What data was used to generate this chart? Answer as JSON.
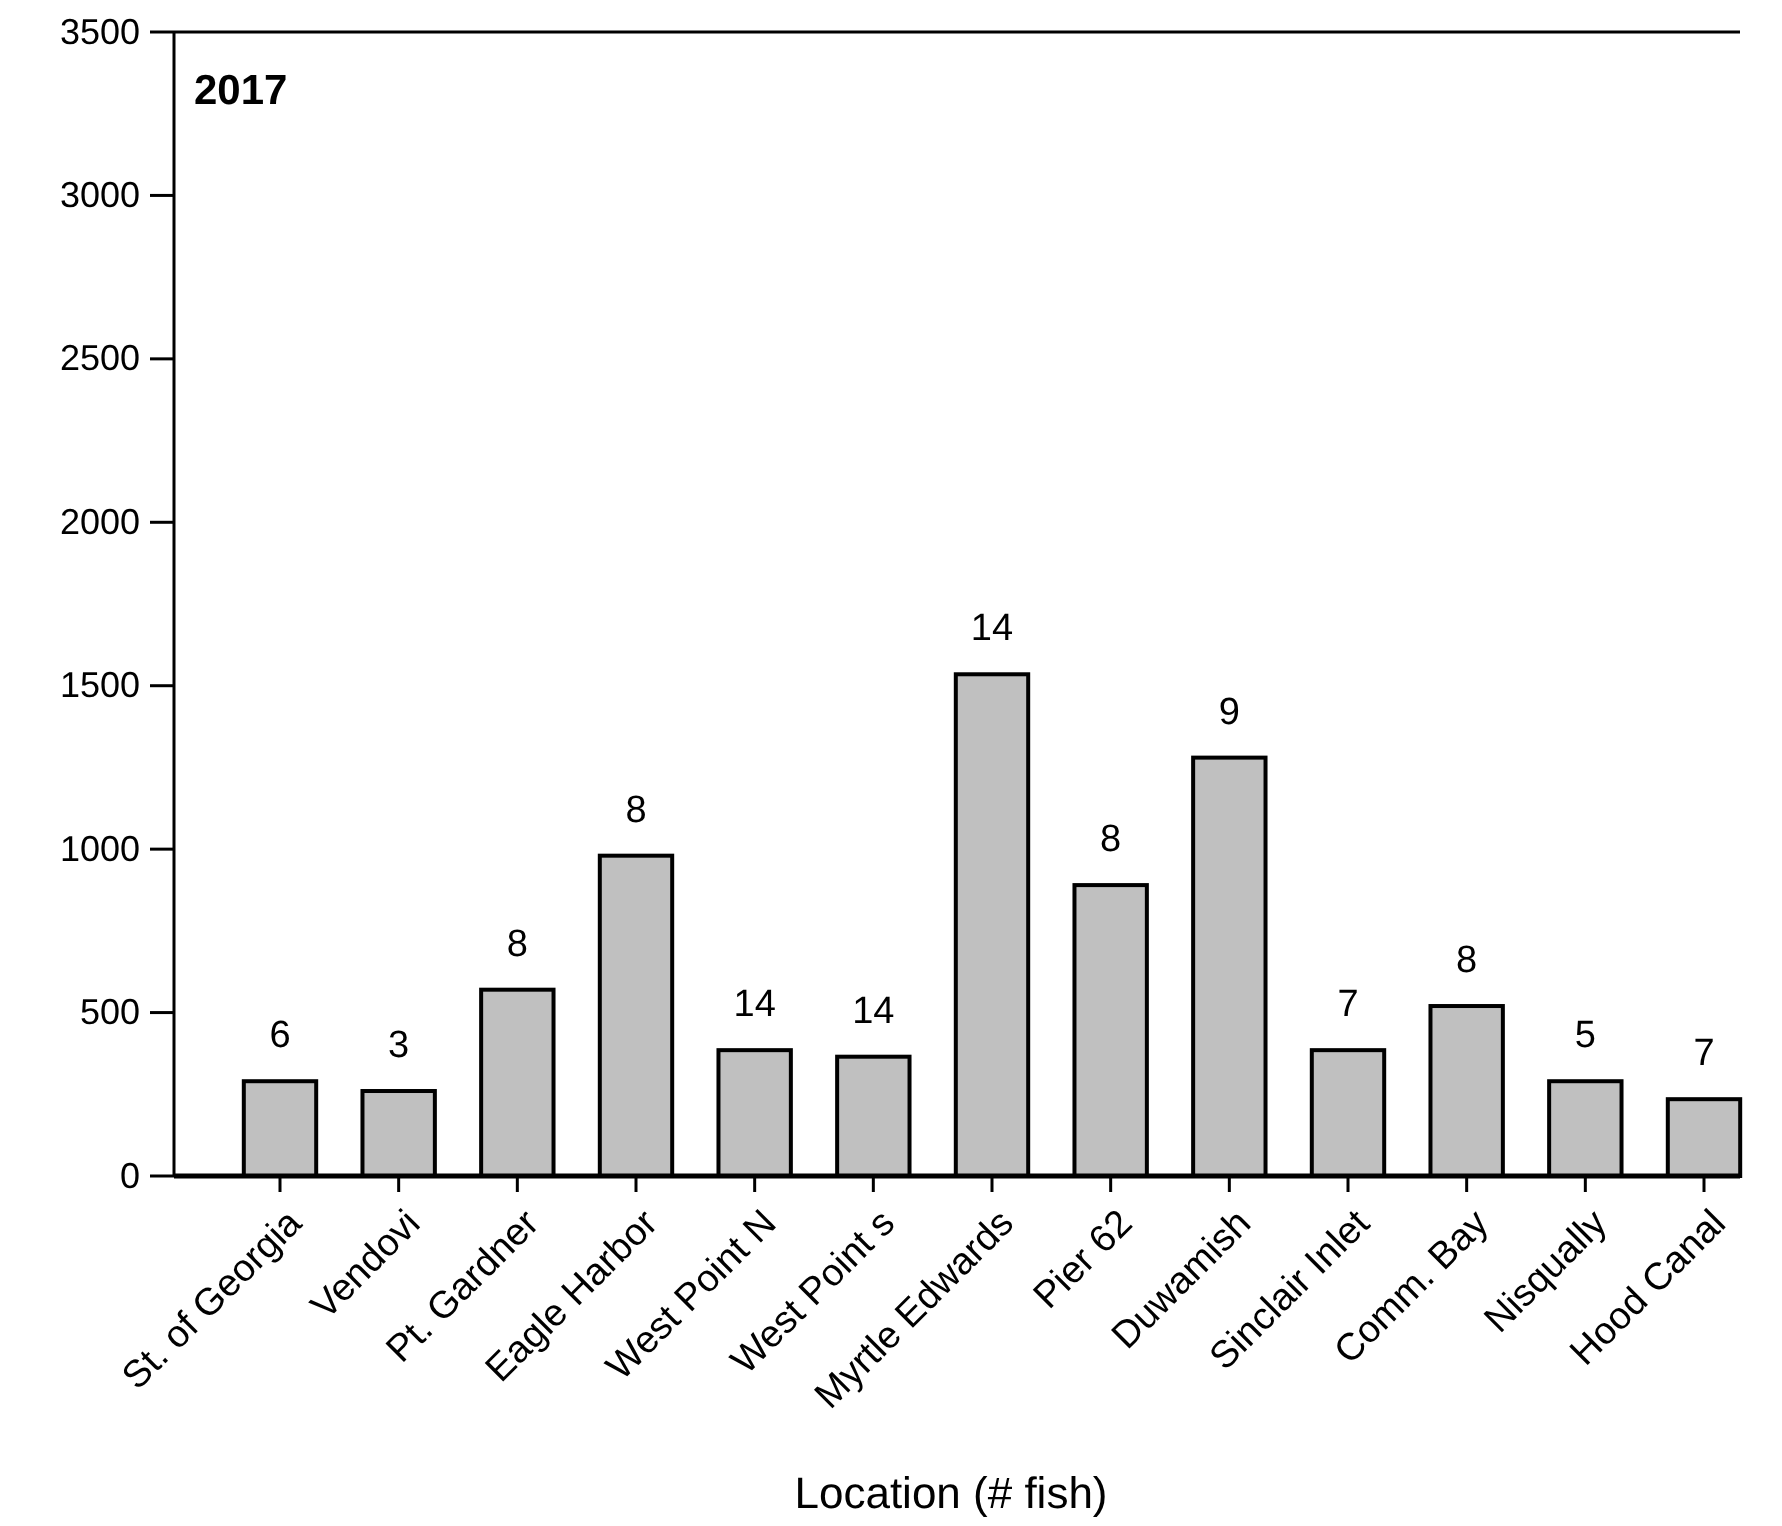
{
  "chart_data": {
    "type": "bar",
    "title": "2017",
    "xlabel": "Location (# fish)",
    "categories": [
      "St. of Georgia",
      "Vendovi",
      "Pt. Gardner",
      "Eagle Harbor",
      "West Point N",
      "West Point s",
      "Myrtle Edwards",
      "Pier 62",
      "Duwamish",
      "Sinclair Inlet",
      "Comm. Bay",
      "Nisqually",
      "Hood Canal"
    ],
    "values": [
      290,
      260,
      570,
      980,
      385,
      365,
      1535,
      890,
      1280,
      385,
      520,
      290,
      235
    ],
    "annotations": [
      {
        "text": "6",
        "x": "St. of Georgia",
        "y": 290
      },
      {
        "text": "3",
        "x": "Vendovi",
        "y": 260
      },
      {
        "text": "8",
        "x": "Pt. Gardner",
        "y": 570
      },
      {
        "text": "8",
        "x": "Eagle Harbor",
        "y": 980
      },
      {
        "text": "14",
        "x": "West Point N",
        "y": 385
      },
      {
        "text": "14",
        "x": "West Point s",
        "y": 365
      },
      {
        "text": "14",
        "x": "Myrtle Edwards",
        "y": 1535
      },
      {
        "text": "8",
        "x": "Pier 62",
        "y": 890
      },
      {
        "text": "9",
        "x": "Duwamish",
        "y": 1280
      },
      {
        "text": "7",
        "x": "Sinclair Inlet",
        "y": 385
      },
      {
        "text": "8",
        "x": "Comm. Bay",
        "y": 520
      },
      {
        "text": "5",
        "x": "Nisqually",
        "y": 290
      },
      {
        "text": "7",
        "x": "Hood Canal",
        "y": 235
      }
    ],
    "color": "#c0c0c0",
    "ylim": [
      0,
      3500
    ],
    "yticks": [
      0,
      500,
      1000,
      1500,
      2000,
      2500,
      3000,
      3500
    ],
    "grid": false
  }
}
